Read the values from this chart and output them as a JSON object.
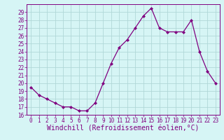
{
  "x": [
    0,
    1,
    2,
    3,
    4,
    5,
    6,
    7,
    8,
    9,
    10,
    11,
    12,
    13,
    14,
    15,
    16,
    17,
    18,
    19,
    20,
    21,
    22,
    23
  ],
  "y": [
    19.5,
    18.5,
    18.0,
    17.5,
    17.0,
    17.0,
    16.5,
    16.5,
    17.5,
    20.0,
    22.5,
    24.5,
    25.5,
    27.0,
    28.5,
    29.5,
    27.0,
    26.5,
    26.5,
    26.5,
    28.0,
    24.0,
    21.5,
    20.0
  ],
  "line_color": "#800080",
  "marker": "D",
  "marker_size": 2,
  "bg_color": "#d6f5f5",
  "grid_color": "#b0d8d8",
  "xlabel": "Windchill (Refroidissement éolien,°C)",
  "xlabel_fontsize": 7,
  "ylim": [
    16,
    30
  ],
  "yticks": [
    16,
    17,
    18,
    19,
    20,
    21,
    22,
    23,
    24,
    25,
    26,
    27,
    28,
    29
  ],
  "xticks": [
    0,
    1,
    2,
    3,
    4,
    5,
    6,
    7,
    8,
    9,
    10,
    11,
    12,
    13,
    14,
    15,
    16,
    17,
    18,
    19,
    20,
    21,
    22,
    23
  ],
  "tick_fontsize": 5.5,
  "axis_color": "#800080",
  "spine_color": "#800080",
  "linewidth": 0.9
}
